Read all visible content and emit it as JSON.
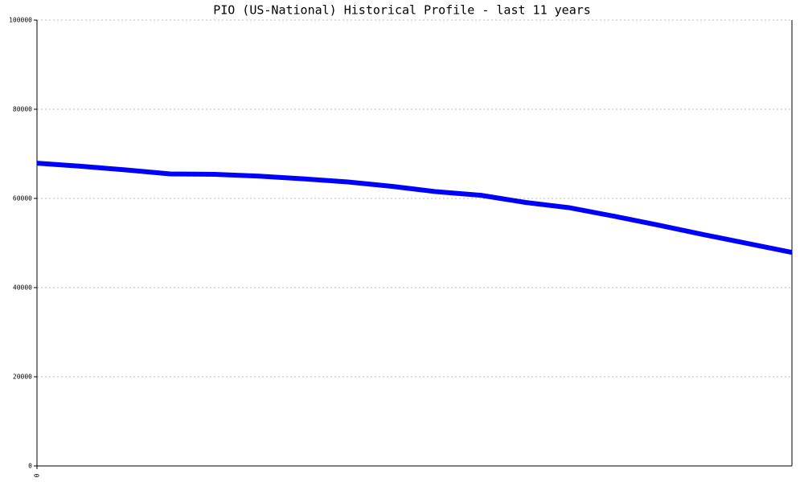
{
  "chart_data": {
    "type": "line",
    "title": "PIO (US-National) Historical Profile - last 11 years",
    "categories": [
      "0",
      null,
      null,
      null,
      null,
      null,
      null,
      null,
      null,
      null,
      null,
      null,
      null,
      null,
      null,
      null,
      null,
      null
    ],
    "series": [
      {
        "name": "PIO",
        "color": "#0000ff",
        "values": [
          67900,
          67200,
          66400,
          65500,
          65400,
          65000,
          64400,
          63700,
          62700,
          61500,
          60700,
          59100,
          57900,
          56000,
          54000,
          51900,
          49900,
          47900
        ]
      }
    ],
    "ylim": [
      0,
      100000
    ],
    "yticks": [
      0,
      20000,
      40000,
      60000,
      80000,
      100000
    ],
    "grid": true
  }
}
